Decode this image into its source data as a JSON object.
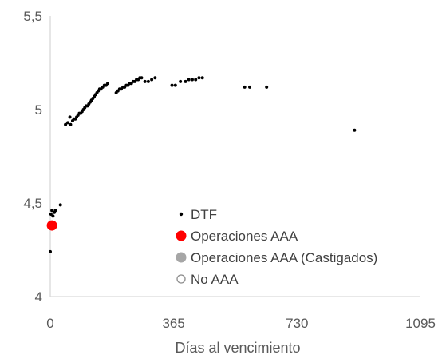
{
  "chart_data": {
    "type": "scatter",
    "xlabel": "Días al vencimiento",
    "ylabel": "",
    "xlim": [
      0,
      1095
    ],
    "ylim": [
      4,
      5.5
    ],
    "x_ticks": [
      {
        "value": 0,
        "label": "0"
      },
      {
        "value": 365,
        "label": "365"
      },
      {
        "value": 730,
        "label": "730"
      },
      {
        "value": 1095,
        "label": "1095"
      }
    ],
    "y_ticks": [
      {
        "value": 4,
        "label": "4"
      },
      {
        "value": 4.5,
        "label": "4,5"
      },
      {
        "value": 5,
        "label": "5"
      },
      {
        "value": 5.5,
        "label": "5,5"
      }
    ],
    "grid": false,
    "legend_position": "bottom-center",
    "series": [
      {
        "name": "DTF",
        "marker": "small-dot",
        "color": "#000000",
        "points": [
          [
            0,
            4.24
          ],
          [
            2,
            4.44
          ],
          [
            5,
            4.46
          ],
          [
            8,
            4.43
          ],
          [
            12,
            4.45
          ],
          [
            15,
            4.46
          ],
          [
            30,
            4.49
          ],
          [
            45,
            4.92
          ],
          [
            52,
            4.93
          ],
          [
            58,
            4.96
          ],
          [
            60,
            4.92
          ],
          [
            66,
            4.94
          ],
          [
            70,
            4.95
          ],
          [
            74,
            4.95
          ],
          [
            78,
            4.96
          ],
          [
            82,
            4.97
          ],
          [
            86,
            4.98
          ],
          [
            90,
            4.98
          ],
          [
            94,
            4.99
          ],
          [
            98,
            5.0
          ],
          [
            102,
            5.01
          ],
          [
            106,
            5.02
          ],
          [
            110,
            5.02
          ],
          [
            114,
            5.03
          ],
          [
            118,
            5.04
          ],
          [
            122,
            5.05
          ],
          [
            126,
            5.06
          ],
          [
            130,
            5.07
          ],
          [
            134,
            5.08
          ],
          [
            138,
            5.09
          ],
          [
            142,
            5.1
          ],
          [
            146,
            5.11
          ],
          [
            150,
            5.11
          ],
          [
            155,
            5.12
          ],
          [
            160,
            5.13
          ],
          [
            165,
            5.13
          ],
          [
            170,
            5.14
          ],
          [
            195,
            5.09
          ],
          [
            200,
            5.1
          ],
          [
            205,
            5.11
          ],
          [
            210,
            5.11
          ],
          [
            215,
            5.12
          ],
          [
            220,
            5.12
          ],
          [
            225,
            5.13
          ],
          [
            230,
            5.13
          ],
          [
            235,
            5.14
          ],
          [
            240,
            5.14
          ],
          [
            245,
            5.15
          ],
          [
            250,
            5.15
          ],
          [
            255,
            5.16
          ],
          [
            260,
            5.16
          ],
          [
            265,
            5.17
          ],
          [
            270,
            5.17
          ],
          [
            280,
            5.15
          ],
          [
            290,
            5.15
          ],
          [
            300,
            5.16
          ],
          [
            310,
            5.17
          ],
          [
            360,
            5.13
          ],
          [
            370,
            5.13
          ],
          [
            385,
            5.15
          ],
          [
            400,
            5.15
          ],
          [
            410,
            5.16
          ],
          [
            420,
            5.16
          ],
          [
            430,
            5.16
          ],
          [
            440,
            5.17
          ],
          [
            450,
            5.17
          ],
          [
            575,
            5.12
          ],
          [
            590,
            5.12
          ],
          [
            640,
            5.12
          ],
          [
            900,
            4.89
          ]
        ]
      },
      {
        "name": "Operaciones AAA",
        "marker": "large-dot",
        "color": "#ff0000",
        "points": [
          [
            5,
            4.38
          ]
        ]
      },
      {
        "name": "Operaciones AAA (Castigados)",
        "marker": "large-dot",
        "color": "#a6a6a6",
        "points": []
      },
      {
        "name": "No AAA",
        "marker": "hollow-circle",
        "color": "#8c8c8c",
        "points": []
      }
    ]
  }
}
